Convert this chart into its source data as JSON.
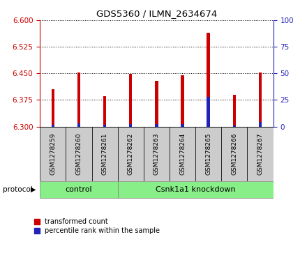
{
  "title": "GDS5360 / ILMN_2634674",
  "samples": [
    "GSM1278259",
    "GSM1278260",
    "GSM1278261",
    "GSM1278262",
    "GSM1278263",
    "GSM1278264",
    "GSM1278265",
    "GSM1278266",
    "GSM1278267"
  ],
  "red_values": [
    6.405,
    6.452,
    6.385,
    6.448,
    6.428,
    6.445,
    6.565,
    6.39,
    6.452
  ],
  "blue_values": [
    6.305,
    6.308,
    6.304,
    6.306,
    6.307,
    6.306,
    6.383,
    6.303,
    6.312
  ],
  "blue_percentiles": [
    2,
    5,
    3,
    3,
    3,
    3,
    28,
    2,
    5
  ],
  "y_min": 6.3,
  "y_max": 6.6,
  "y_ticks": [
    6.3,
    6.375,
    6.45,
    6.525,
    6.6
  ],
  "right_y_ticks": [
    0,
    25,
    50,
    75,
    100
  ],
  "groups": [
    {
      "label": "control",
      "start": 0,
      "end": 2
    },
    {
      "label": "Csnk1a1 knockdown",
      "start": 3,
      "end": 8
    }
  ],
  "protocol_label": "protocol",
  "bar_color_red": "#cc0000",
  "bar_color_blue": "#2222bb",
  "group_bg_color": "#88ee88",
  "sample_box_color": "#cccccc",
  "left_tick_color": "#cc0000",
  "right_tick_color": "#2222bb",
  "bar_width": 0.12
}
